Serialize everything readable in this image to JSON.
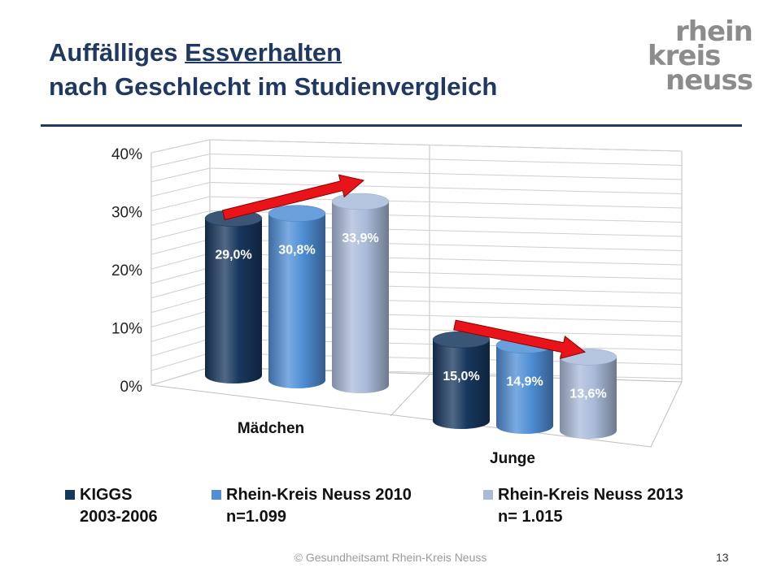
{
  "slide": {
    "title_line1_pre": "Auffälliges ",
    "title_line1_ul": "Essverhalten",
    "title_line2": "nach Geschlecht im Studienvergleich",
    "logo_lines": [
      "rhein",
      "kreis",
      "neuss"
    ],
    "footer": "© Gesundheitsamt Rhein-Kreis Neuss",
    "page_number": "13"
  },
  "chart_data": {
    "type": "bar",
    "variant": "3d-cylinder",
    "categories": [
      "Mädchen",
      "Junge"
    ],
    "series": [
      {
        "name": "KIGGS\n2003-2006",
        "color": "#17375e",
        "values": [
          29.0,
          15.0
        ],
        "labels": [
          "29,0%",
          "15,0%"
        ]
      },
      {
        "name": "Rhein-Kreis Neuss 2010\nn=1.099",
        "color": "#4f8fd6",
        "values": [
          30.8,
          14.9
        ],
        "labels": [
          "30,8%",
          "14,9%"
        ]
      },
      {
        "name": "Rhein-Kreis Neuss 2013\nn= 1.015",
        "color": "#a9bbd9",
        "values": [
          33.9,
          13.6
        ],
        "labels": [
          "33,9%",
          "13,6%"
        ]
      }
    ],
    "ylim": [
      0,
      40
    ],
    "yticks": [
      0,
      10,
      20,
      30,
      40
    ],
    "ytick_labels": [
      "0%",
      "10%",
      "20%",
      "30%",
      "40%"
    ],
    "grid": true,
    "legend_position": "bottom",
    "annotations": [
      {
        "type": "trend-arrow",
        "category": "Mädchen",
        "direction": "up",
        "color": "#e8141a"
      },
      {
        "type": "trend-arrow",
        "category": "Junge",
        "direction": "down",
        "color": "#e8141a"
      }
    ]
  }
}
